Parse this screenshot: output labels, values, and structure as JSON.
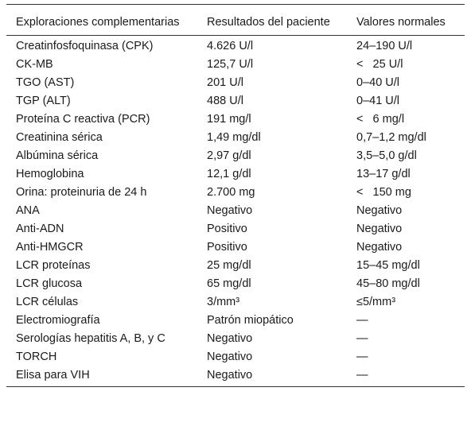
{
  "table": {
    "header": [
      "Exploraciones complementarias",
      "Resultados del paciente",
      "Valores normales"
    ],
    "rows": [
      [
        "Creatinfosfoquinasa (CPK)",
        "4.626 U/l",
        "24–190 U/l"
      ],
      [
        "CK-MB",
        "125,7 U/l",
        "<   25 U/l"
      ],
      [
        "TGO (AST)",
        "201 U/l",
        "0–40 U/l"
      ],
      [
        "TGP (ALT)",
        "488 U/l",
        "0–41 U/l"
      ],
      [
        "Proteína C reactiva (PCR)",
        "191 mg/l",
        "<   6 mg/l"
      ],
      [
        "Creatinina sérica",
        "1,49 mg/dl",
        "0,7–1,2 mg/dl"
      ],
      [
        "Albúmina sérica",
        "2,97 g/dl",
        "3,5–5,0 g/dl"
      ],
      [
        "Hemoglobina",
        "12,1 g/dl",
        "13–17 g/dl"
      ],
      [
        "Orina: proteinuria de 24 h",
        "2.700 mg",
        "<   150 mg"
      ],
      [
        "ANA",
        "Negativo",
        "Negativo"
      ],
      [
        "Anti-ADN",
        "Positivo",
        "Negativo"
      ],
      [
        "Anti-HMGCR",
        "Positivo",
        "Negativo"
      ],
      [
        "LCR proteínas",
        "25 mg/dl",
        "15–45 mg/dl"
      ],
      [
        "LCR glucosa",
        "65 mg/dl",
        "45–80 mg/dl"
      ],
      [
        "LCR células",
        "3/mm³",
        "≤5/mm³"
      ],
      [
        "Electromiografía",
        "Patrón miopático",
        "—"
      ],
      [
        "Serologías hepatitis A, B, y C",
        "Negativo",
        "—"
      ],
      [
        "TORCH",
        "Negativo",
        "—"
      ],
      [
        "Elisa para VIH",
        "Negativo",
        "—"
      ]
    ]
  }
}
